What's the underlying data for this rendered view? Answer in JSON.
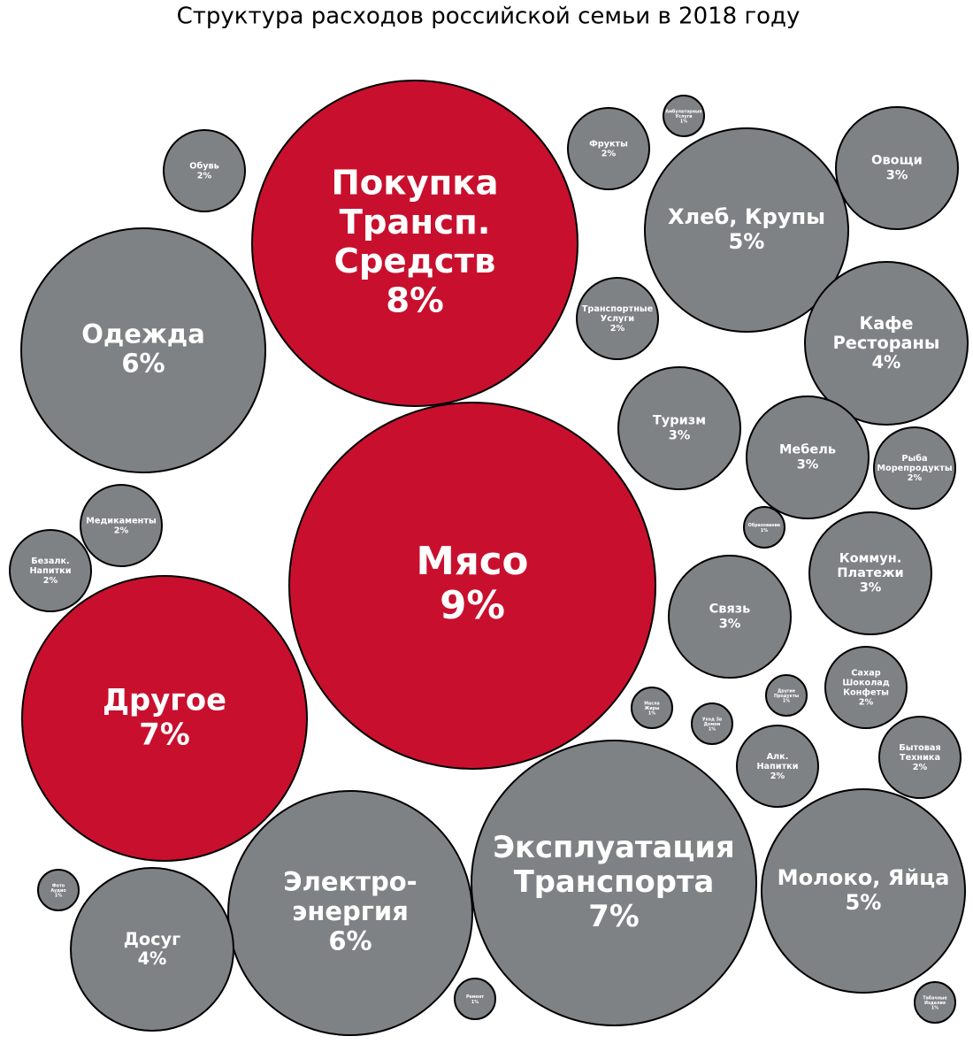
{
  "chart_data": {
    "type": "bubble",
    "title": "Структура расходов российской семьи в 2018 году",
    "labels": [
      [
        "Мясо"
      ],
      [
        "Покупка",
        "Трансп.",
        "Средств"
      ],
      [
        "Другое"
      ],
      [
        "Эксплуатация",
        "Транспорта"
      ],
      [
        "Одежда"
      ],
      [
        "Электро-",
        "энергия"
      ],
      [
        "Хлеб, Крупы"
      ],
      [
        "Молоко, Яйца"
      ],
      [
        "Кафе",
        "Рестораны"
      ],
      [
        "Досуг"
      ],
      [
        "Туризм"
      ],
      [
        "Связь"
      ],
      [
        "Мебель"
      ],
      [
        "Коммун.",
        "Платежи"
      ],
      [
        "Овощи"
      ],
      [
        "Фрукты"
      ],
      [
        "Транспортные",
        "Услуги"
      ],
      [
        "Обувь"
      ],
      [
        "Медикаменты"
      ],
      [
        "Безалк.",
        "Напитки"
      ],
      [
        "Рыба",
        "Морепродукты"
      ],
      [
        "Сахар",
        "Шоколад",
        "Конфеты"
      ],
      [
        "Бытовая",
        "Техника"
      ],
      [
        "Алк.",
        "Напитки"
      ],
      [
        "Амбулаторные",
        "Услуги"
      ],
      [
        "Масла",
        "Жиры"
      ],
      [
        "Уход За",
        "Домом"
      ],
      [
        "Другие",
        "Продукты"
      ],
      [
        "Образование"
      ],
      [
        "Фото",
        "Аудио"
      ],
      [
        "Ремонт"
      ],
      [
        "Табачные",
        "Изделия"
      ]
    ],
    "values": [
      9,
      8,
      7,
      7,
      6,
      6,
      5,
      5,
      4,
      4,
      3,
      3,
      3,
      3,
      3,
      2,
      2,
      2,
      2,
      2,
      2,
      2,
      2,
      2,
      1,
      1,
      1,
      1,
      1,
      1,
      1,
      1
    ],
    "value_labels": [
      "9%",
      "8%",
      "7%",
      "7%",
      "6%",
      "6%",
      "5%",
      "5%",
      "4%",
      "4%",
      "3%",
      "3%",
      "3%",
      "3%",
      "3%",
      "2%",
      "2%",
      "2%",
      "2%",
      "2%",
      "2%",
      "2%",
      "2%",
      "2%",
      "1%",
      "1%",
      "1%",
      "1%",
      "1%",
      "1%",
      "1%",
      "1%"
    ],
    "colors": [
      "#c8102e",
      "#c8102e",
      "#c8102e",
      "#7f8285",
      "#7f8285",
      "#7f8285",
      "#7f8285",
      "#7f8285",
      "#7f8285",
      "#7f8285",
      "#7f8285",
      "#7f8285",
      "#7f8285",
      "#7f8285",
      "#7f8285",
      "#7f8285",
      "#7f8285",
      "#7f8285",
      "#7f8285",
      "#7f8285",
      "#7f8285",
      "#7f8285",
      "#7f8285",
      "#7f8285",
      "#7f8285",
      "#7f8285",
      "#7f8285",
      "#7f8285",
      "#7f8285",
      "#7f8285",
      "#7f8285",
      "#7f8285"
    ]
  }
}
